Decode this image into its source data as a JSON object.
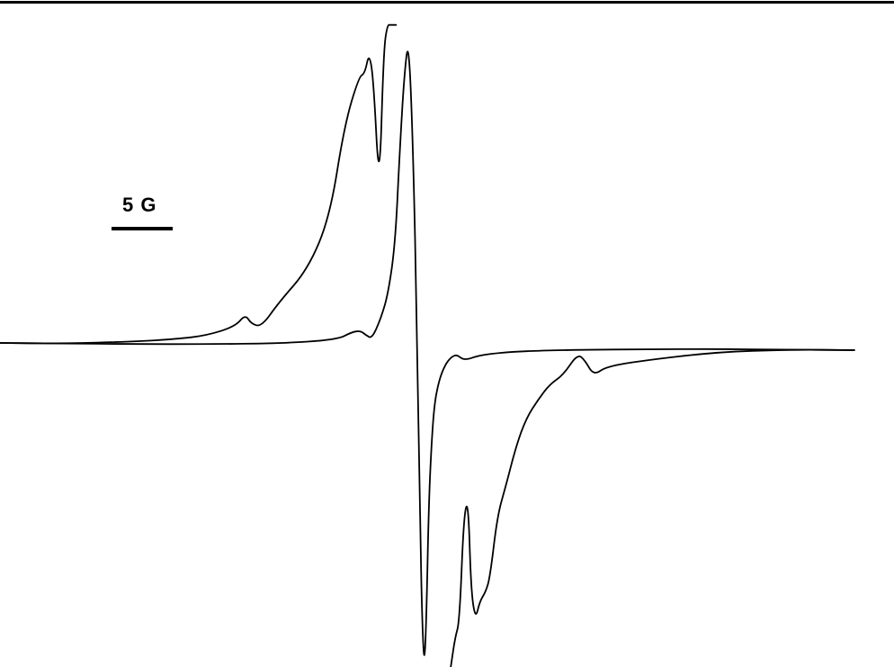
{
  "chart_data": {
    "type": "line",
    "title": "",
    "xlabel": "",
    "ylabel": "",
    "scale_bar": {
      "label": "5 G",
      "length_gauss": 5
    },
    "xlim": [
      -30,
      30
    ],
    "ylim": [
      -1.0,
      1.0
    ],
    "grid": false,
    "legend": "none",
    "baseline_tilt": -0.012,
    "series": [
      {
        "trace": "narrow",
        "color": "#000000",
        "x": [
          -29.5,
          -25.0,
          -20.0,
          -15.0,
          -10.0,
          -6.0,
          -5.0,
          -4.4,
          -4.0,
          -3.6,
          -3.0,
          -2.5,
          -2.0,
          -1.7,
          -1.4,
          -1.1,
          -0.8,
          -0.5,
          -0.3,
          -0.15,
          0.0,
          0.15,
          0.3,
          0.5,
          0.7,
          1.0,
          1.4,
          1.8,
          2.2,
          2.6,
          3.0,
          3.6,
          4.5,
          6.0,
          8.0,
          11.0,
          15.0,
          20.0,
          25.0,
          29.5
        ],
        "y": [
          0.0,
          0.0,
          0.0,
          0.002,
          0.006,
          0.02,
          0.045,
          0.05,
          0.035,
          0.025,
          0.09,
          0.17,
          0.34,
          0.64,
          0.88,
          1.01,
          0.68,
          0.02,
          -0.6,
          -0.92,
          -1.05,
          -0.85,
          -0.5,
          -0.3,
          -0.18,
          -0.11,
          -0.06,
          -0.035,
          -0.025,
          -0.04,
          -0.04,
          -0.03,
          -0.022,
          -0.015,
          -0.01,
          -0.006,
          -0.003,
          0.0,
          0.0,
          0.0
        ]
      },
      {
        "trace": "broad",
        "color": "#000000",
        "x": [
          -29.5,
          -25.0,
          -20.0,
          -17.0,
          -15.0,
          -13.0,
          -12.3,
          -11.9,
          -11.2,
          -10.0,
          -8.0,
          -6.5,
          -5.5,
          -4.5,
          -4.1,
          -3.8,
          -3.5,
          -3.1,
          -2.8,
          -2.55,
          -2.35,
          -2.15,
          -1.95
        ],
        "y": [
          0.0,
          0.0,
          0.008,
          0.018,
          0.03,
          0.06,
          0.1,
          0.07,
          0.06,
          0.14,
          0.25,
          0.42,
          0.72,
          0.88,
          0.89,
          0.96,
          0.87,
          0.5,
          0.97,
          1.05,
          1.05,
          1.05,
          1.05
        ]
      },
      {
        "trace": "broad",
        "color": "#000000",
        "x": [
          1.8,
          2.1,
          2.4,
          2.7,
          3.0,
          3.2,
          3.5,
          3.8,
          4.2,
          4.5,
          5.0,
          5.6,
          6.3,
          7.0,
          7.8,
          8.6,
          9.5,
          10.5,
          11.0,
          11.6,
          12.5,
          15.0,
          20.0,
          25.0,
          29.5
        ],
        "y": [
          -1.05,
          -0.95,
          -0.9,
          -0.55,
          -0.5,
          -0.8,
          -0.89,
          -0.83,
          -0.8,
          -0.75,
          -0.55,
          -0.45,
          -0.32,
          -0.23,
          -0.17,
          -0.12,
          -0.09,
          -0.02,
          -0.04,
          -0.09,
          -0.06,
          -0.04,
          -0.01,
          0.0,
          0.0
        ]
      }
    ]
  }
}
